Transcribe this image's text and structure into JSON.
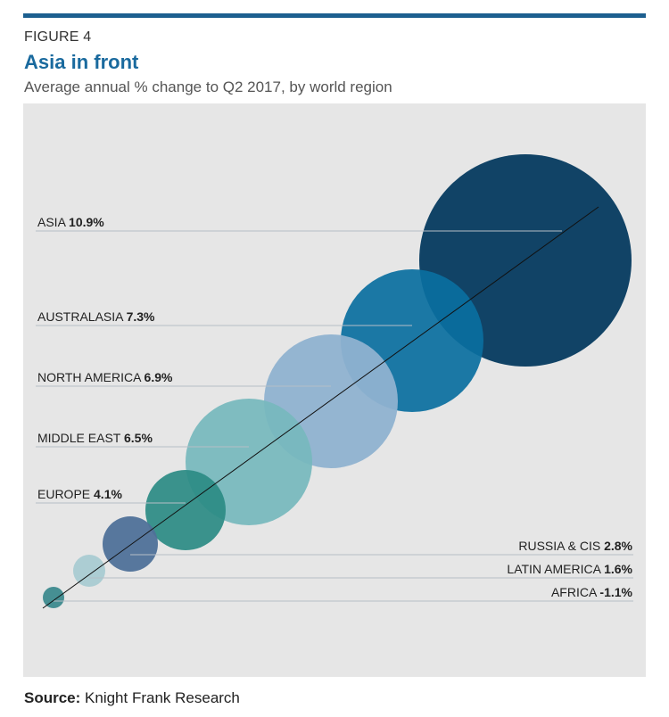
{
  "header": {
    "figure_label": "FIGURE 4",
    "title": "Asia in front",
    "subtitle": "Average annual % change to Q2 2017, by world region"
  },
  "source": {
    "label": "Source:",
    "text": "Knight Frank Research"
  },
  "chart_data": {
    "type": "bubble",
    "title": "Asia in front",
    "subtitle": "Average annual % change to Q2 2017, by world region",
    "series": [
      {
        "region": "ASIA",
        "value": 10.9,
        "value_label": "10.9%",
        "color": "#053a5f",
        "label_side": "left"
      },
      {
        "region": "AUSTRALASIA",
        "value": 7.3,
        "value_label": "7.3%",
        "color": "#0a6f9f",
        "label_side": "left"
      },
      {
        "region": "NORTH AMERICA",
        "value": 6.9,
        "value_label": "6.9%",
        "color": "#8fb2d0",
        "label_side": "left"
      },
      {
        "region": "MIDDLE EAST",
        "value": 6.5,
        "value_label": "6.5%",
        "color": "#76b8bd",
        "label_side": "left"
      },
      {
        "region": "EUROPE",
        "value": 4.1,
        "value_label": "4.1%",
        "color": "#2b8b84",
        "label_side": "left"
      },
      {
        "region": "RUSSIA & CIS",
        "value": 2.8,
        "value_label": "2.8%",
        "color": "#4f7199",
        "label_side": "right"
      },
      {
        "region": "LATIN AMERICA",
        "value": 1.6,
        "value_label": "1.6%",
        "color": "#a9cbd2",
        "label_side": "right"
      },
      {
        "region": "AFRICA",
        "value": -1.1,
        "value_label": "-1.1%",
        "color": "#3d8a8e",
        "label_side": "right"
      }
    ],
    "legend": "none",
    "grid": false
  }
}
